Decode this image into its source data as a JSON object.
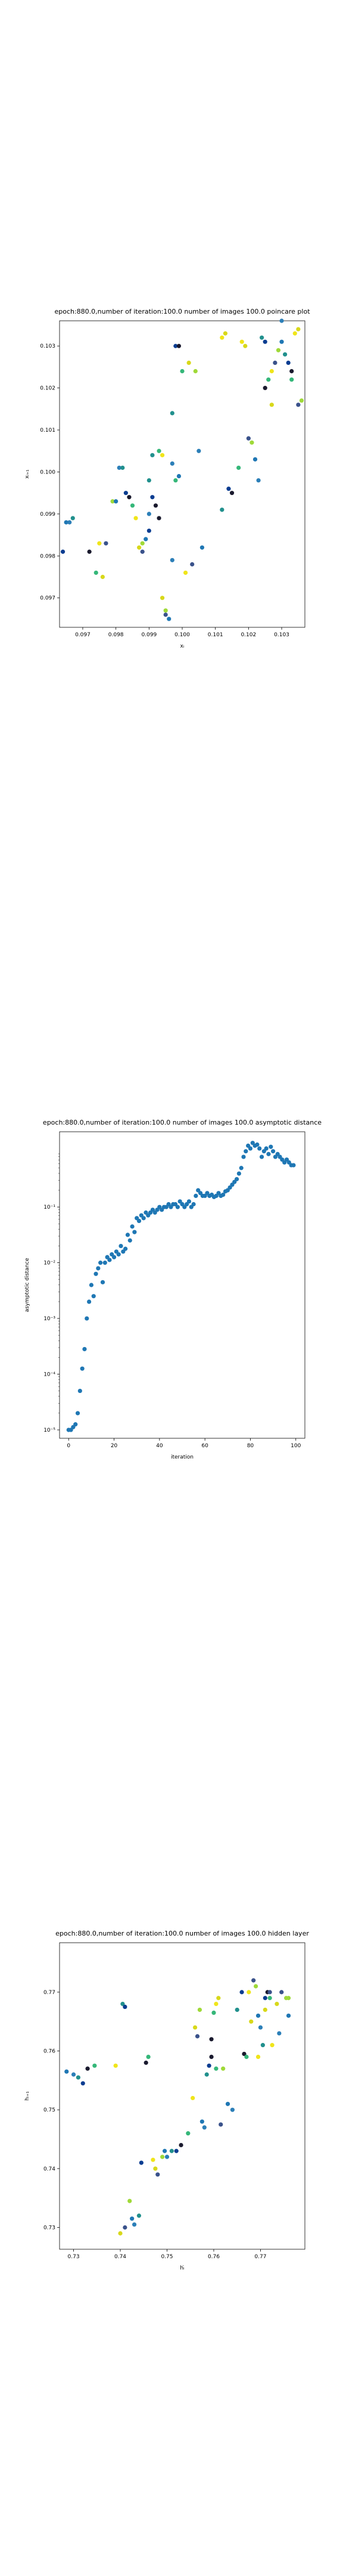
{
  "chart_data": [
    {
      "type": "scatter",
      "title": "epoch:880.0,number of iteration:100.0 number of images 100.0 poincare plot",
      "xlabel": "xᵢ",
      "ylabel": "xᵢ₊₁",
      "xlim": [
        0.0963,
        0.1037
      ],
      "ylim": [
        0.0963,
        0.1036
      ],
      "xticks": [
        "0.097",
        "0.098",
        "0.099",
        "0.100",
        "0.101",
        "0.102",
        "0.103"
      ],
      "xtick_values": [
        0.097,
        0.098,
        0.099,
        0.1,
        0.101,
        0.102,
        0.103
      ],
      "yticks": [
        "0.097",
        "0.098",
        "0.099",
        "0.100",
        "0.101",
        "0.102",
        "0.103"
      ],
      "ytick_values": [
        0.097,
        0.098,
        0.099,
        0.1,
        0.101,
        0.102,
        0.103
      ],
      "points": [
        [
          0.0965,
          0.0988
        ],
        [
          0.0966,
          0.0988
        ],
        [
          0.0967,
          0.0989
        ],
        [
          0.0964,
          0.0981
        ],
        [
          0.0972,
          0.0981
        ],
        [
          0.0974,
          0.0976
        ],
        [
          0.0975,
          0.0983
        ],
        [
          0.0976,
          0.0975
        ],
        [
          0.0977,
          0.0983
        ],
        [
          0.0979,
          0.0993
        ],
        [
          0.098,
          0.0993
        ],
        [
          0.0981,
          0.1001
        ],
        [
          0.0982,
          0.1001
        ],
        [
          0.0983,
          0.0995
        ],
        [
          0.0984,
          0.0994
        ],
        [
          0.0985,
          0.0992
        ],
        [
          0.0986,
          0.0989
        ],
        [
          0.0987,
          0.0982
        ],
        [
          0.0988,
          0.0981
        ],
        [
          0.0988,
          0.0983
        ],
        [
          0.0989,
          0.0984
        ],
        [
          0.099,
          0.099
        ],
        [
          0.099,
          0.0998
        ],
        [
          0.0991,
          0.0994
        ],
        [
          0.0992,
          0.0992
        ],
        [
          0.0993,
          0.1005
        ],
        [
          0.0994,
          0.1004
        ],
        [
          0.0994,
          0.097
        ],
        [
          0.0995,
          0.0966
        ],
        [
          0.0995,
          0.0967
        ],
        [
          0.0996,
          0.0965
        ],
        [
          0.0997,
          0.0979
        ],
        [
          0.0997,
          0.1014
        ],
        [
          0.0998,
          0.103
        ],
        [
          0.0999,
          0.103
        ],
        [
          0.1,
          0.1024
        ],
        [
          0.1001,
          0.0976
        ],
        [
          0.1002,
          0.1026
        ],
        [
          0.1003,
          0.0978
        ],
        [
          0.1004,
          0.1024
        ],
        [
          0.1006,
          0.0982
        ],
        [
          0.1005,
          0.1005
        ],
        [
          0.1012,
          0.0991
        ],
        [
          0.1014,
          0.0996
        ],
        [
          0.1015,
          0.0995
        ],
        [
          0.1017,
          0.1001
        ],
        [
          0.1018,
          0.1031
        ],
        [
          0.1019,
          0.103
        ],
        [
          0.102,
          0.1008
        ],
        [
          0.1021,
          0.1007
        ],
        [
          0.1022,
          0.1003
        ],
        [
          0.1023,
          0.0998
        ],
        [
          0.1024,
          0.1032
        ],
        [
          0.1025,
          0.1031
        ],
        [
          0.1025,
          0.102
        ],
        [
          0.1026,
          0.1022
        ],
        [
          0.1027,
          0.1024
        ],
        [
          0.1027,
          0.1016
        ],
        [
          0.1028,
          0.1026
        ],
        [
          0.1029,
          0.1029
        ],
        [
          0.103,
          0.1031
        ],
        [
          0.103,
          0.1036
        ],
        [
          0.1031,
          0.1028
        ],
        [
          0.1032,
          0.1026
        ],
        [
          0.1033,
          0.1024
        ],
        [
          0.1033,
          0.1022
        ],
        [
          0.1034,
          0.1033
        ],
        [
          0.1035,
          0.1034
        ],
        [
          0.1035,
          0.1016
        ],
        [
          0.1036,
          0.1017
        ],
        [
          0.0999,
          0.0999
        ],
        [
          0.0997,
          0.1002
        ],
        [
          0.0991,
          0.1004
        ],
        [
          0.099,
          0.0986
        ],
        [
          0.0993,
          0.0989
        ],
        [
          0.0998,
          0.0998
        ],
        [
          0.1012,
          0.1032
        ],
        [
          0.1013,
          0.1033
        ]
      ],
      "colors": [
        "#1f77b4",
        "#2c7fb8",
        "#21908d",
        "#0b3d91",
        "#1a1a2e",
        "#35b779",
        "#f0e51a",
        "#d8d81a",
        "#3a528b",
        "#9fd938"
      ]
    },
    {
      "type": "scatter",
      "title": "epoch:880.0,number of iteration:100.0  number of images 100.0 asymptotic distance",
      "xlabel": "iteration",
      "ylabel": "asymptotic distance",
      "xlim": [
        -4,
        104
      ],
      "ylim_log10": [
        -5.15,
        0.35
      ],
      "log_y": true,
      "xticks": [
        "0",
        "20",
        "40",
        "60",
        "80",
        "100"
      ],
      "xtick_values": [
        0,
        20,
        40,
        60,
        80,
        100
      ],
      "yticks": [
        "10⁻⁵",
        "10⁻⁴",
        "10⁻³",
        "10⁻²",
        "10⁻¹"
      ],
      "ytick_exponents": [
        -5,
        -4,
        -3,
        -2,
        -1
      ],
      "y_log10": [
        -5.0,
        -5.0,
        -4.95,
        -4.9,
        -4.7,
        -4.3,
        -3.9,
        -3.55,
        -3.0,
        -2.7,
        -2.4,
        -2.6,
        -2.2,
        -2.1,
        -2.0,
        -2.35,
        -2.0,
        -1.9,
        -1.95,
        -1.85,
        -1.9,
        -1.8,
        -1.85,
        -1.7,
        -1.8,
        -1.75,
        -1.5,
        -1.6,
        -1.35,
        -1.45,
        -1.2,
        -1.25,
        -1.15,
        -1.2,
        -1.1,
        -1.15,
        -1.1,
        -1.05,
        -1.1,
        -1.05,
        -1.0,
        -1.05,
        -1.0,
        -1.0,
        -0.95,
        -1.0,
        -0.95,
        -0.95,
        -1.0,
        -0.9,
        -0.95,
        -1.0,
        -0.95,
        -0.9,
        -1.0,
        -0.95,
        -0.8,
        -0.7,
        -0.75,
        -0.8,
        -0.8,
        -0.75,
        -0.8,
        -0.78,
        -0.82,
        -0.8,
        -0.75,
        -0.8,
        -0.78,
        -0.72,
        -0.7,
        -0.65,
        -0.6,
        -0.55,
        -0.5,
        -0.4,
        -0.3,
        -0.1,
        0.0,
        0.1,
        0.05,
        0.15,
        0.1,
        0.12,
        0.05,
        -0.1,
        0.0,
        0.05,
        -0.05,
        0.08,
        0.0,
        -0.1,
        -0.05,
        -0.1,
        -0.15,
        -0.2,
        -0.15,
        -0.2,
        -0.25,
        -0.25
      ],
      "color": "#1f77b4"
    },
    {
      "type": "scatter",
      "title": "epoch:880.0,number of iteration:100.0  number of images 100.0 hidden layer",
      "xlabel": "hᵢ̇",
      "ylabel": "hᵢ₊₁",
      "xlim": [
        0.727,
        0.7795
      ],
      "ylim": [
        0.7263,
        0.7784
      ],
      "xticks": [
        "0.73",
        "0.74",
        "0.75",
        "0.76",
        "0.77"
      ],
      "xtick_values": [
        0.73,
        0.74,
        0.75,
        0.76,
        0.77
      ],
      "yticks": [
        "0.73",
        "0.74",
        "0.75",
        "0.76",
        "0.77"
      ],
      "ytick_values": [
        0.73,
        0.74,
        0.75,
        0.76,
        0.77
      ],
      "points": [
        [
          0.7285,
          0.7565
        ],
        [
          0.73,
          0.756
        ],
        [
          0.731,
          0.7555
        ],
        [
          0.732,
          0.7545
        ],
        [
          0.733,
          0.757
        ],
        [
          0.7345,
          0.7575
        ],
        [
          0.739,
          0.7575
        ],
        [
          0.74,
          0.729
        ],
        [
          0.741,
          0.73
        ],
        [
          0.742,
          0.7345
        ],
        [
          0.7425,
          0.7315
        ],
        [
          0.743,
          0.7305
        ],
        [
          0.744,
          0.732
        ],
        [
          0.7445,
          0.741
        ],
        [
          0.7455,
          0.758
        ],
        [
          0.746,
          0.759
        ],
        [
          0.747,
          0.7415
        ],
        [
          0.7475,
          0.74
        ],
        [
          0.748,
          0.739
        ],
        [
          0.749,
          0.742
        ],
        [
          0.7495,
          0.743
        ],
        [
          0.75,
          0.742
        ],
        [
          0.751,
          0.743
        ],
        [
          0.752,
          0.743
        ],
        [
          0.753,
          0.744
        ],
        [
          0.7545,
          0.746
        ],
        [
          0.7555,
          0.752
        ],
        [
          0.756,
          0.764
        ],
        [
          0.7565,
          0.7625
        ],
        [
          0.757,
          0.767
        ],
        [
          0.7575,
          0.748
        ],
        [
          0.758,
          0.747
        ],
        [
          0.7585,
          0.756
        ],
        [
          0.759,
          0.7575
        ],
        [
          0.7595,
          0.762
        ],
        [
          0.76,
          0.7665
        ],
        [
          0.7605,
          0.768
        ],
        [
          0.761,
          0.769
        ],
        [
          0.7615,
          0.7475
        ],
        [
          0.762,
          0.757
        ],
        [
          0.763,
          0.751
        ],
        [
          0.764,
          0.75
        ],
        [
          0.765,
          0.767
        ],
        [
          0.766,
          0.77
        ],
        [
          0.7665,
          0.7595
        ],
        [
          0.767,
          0.759
        ],
        [
          0.7675,
          0.77
        ],
        [
          0.768,
          0.765
        ],
        [
          0.7685,
          0.772
        ],
        [
          0.769,
          0.771
        ],
        [
          0.7695,
          0.766
        ],
        [
          0.77,
          0.764
        ],
        [
          0.7705,
          0.761
        ],
        [
          0.771,
          0.769
        ],
        [
          0.7715,
          0.77
        ],
        [
          0.772,
          0.769
        ],
        [
          0.7725,
          0.761
        ],
        [
          0.7735,
          0.768
        ],
        [
          0.7745,
          0.77
        ],
        [
          0.7755,
          0.769
        ],
        [
          0.776,
          0.766
        ],
        [
          0.774,
          0.763
        ],
        [
          0.7405,
          0.768
        ],
        [
          0.741,
          0.7675
        ],
        [
          0.7595,
          0.759
        ],
        [
          0.7605,
          0.757
        ],
        [
          0.7695,
          0.759
        ],
        [
          0.771,
          0.767
        ],
        [
          0.772,
          0.77
        ],
        [
          0.776,
          0.769
        ]
      ],
      "colors": [
        "#1f77b4",
        "#2c7fb8",
        "#21908d",
        "#0b3d91",
        "#1a1a2e",
        "#35b779",
        "#f0e51a",
        "#d8d81a",
        "#3a528b",
        "#9fd938"
      ]
    }
  ]
}
